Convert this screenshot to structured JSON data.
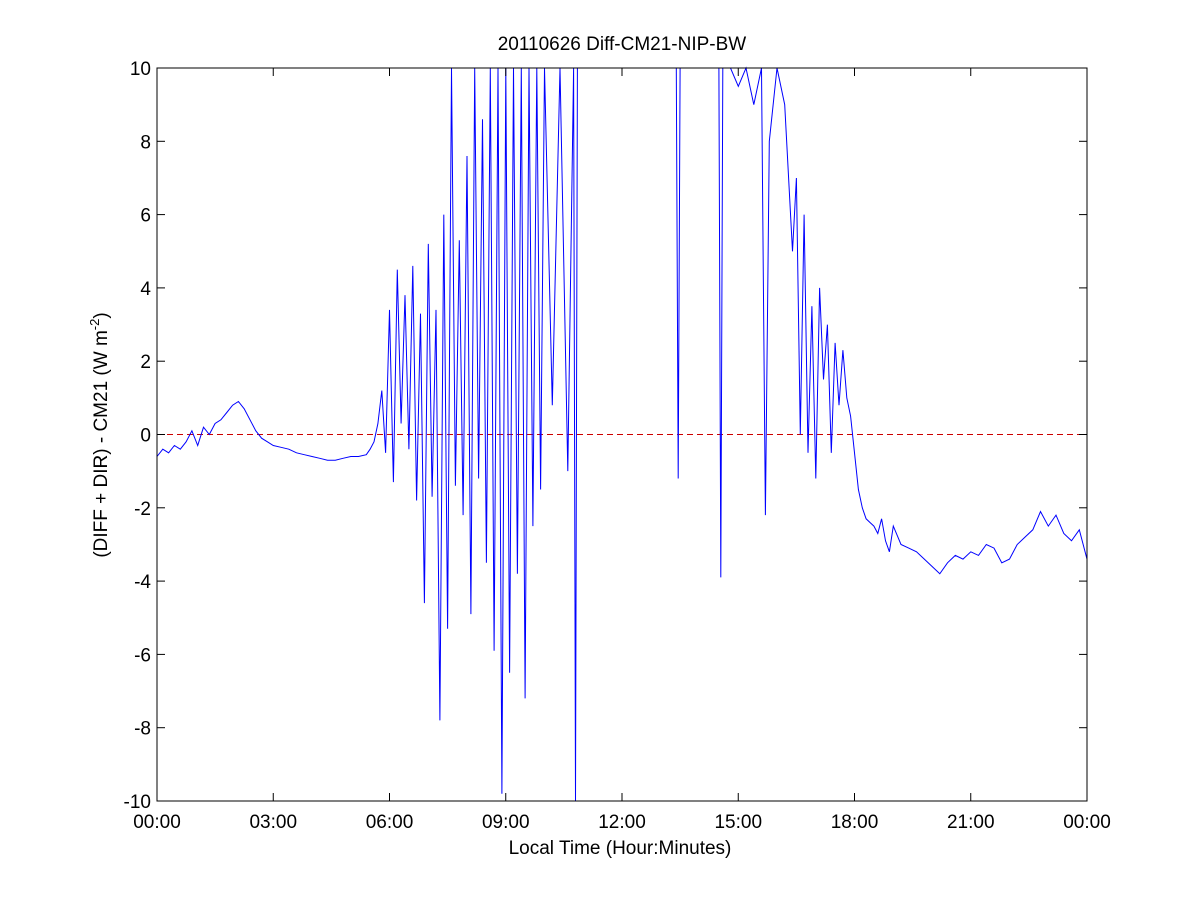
{
  "chart_data": {
    "type": "line",
    "title": "20110626 Diff-CM21-NIP-BW",
    "xlabel": "Local Time (Hour:Minutes)",
    "ylabel": "(DIFF + DIR) - CM21 (W m",
    "ylabel_superscript": "-2",
    "ylabel_suffix": ")",
    "x_unit": "hours",
    "xlim": [
      0,
      24
    ],
    "ylim": [
      -10,
      10
    ],
    "x_ticks": [
      0,
      3,
      6,
      9,
      12,
      15,
      18,
      21,
      24
    ],
    "x_tick_labels": [
      "00:00",
      "03:00",
      "06:00",
      "09:00",
      "12:00",
      "15:00",
      "18:00",
      "21:00",
      "00:00"
    ],
    "y_ticks": [
      -10,
      -8,
      -6,
      -4,
      -2,
      0,
      2,
      4,
      6,
      8,
      10
    ],
    "y_tick_labels": [
      "-10",
      "-8",
      "-6",
      "-4",
      "-2",
      "0",
      "2",
      "4",
      "6",
      "8",
      "10"
    ],
    "grid": false,
    "reference_line": {
      "y": 0,
      "color": "#cc0000",
      "style": "dashed"
    },
    "series": [
      {
        "color": "#0000ff",
        "x": [
          0,
          0.15,
          0.3,
          0.45,
          0.6,
          0.75,
          0.9,
          1.05,
          1.2,
          1.35,
          1.5,
          1.65,
          1.8,
          1.95,
          2.1,
          2.25,
          2.4,
          2.55,
          2.7,
          2.85,
          3.0,
          3.2,
          3.4,
          3.6,
          3.8,
          4.0,
          4.2,
          4.4,
          4.6,
          4.8,
          5.0,
          5.2,
          5.4,
          5.5,
          5.6,
          5.7,
          5.8,
          5.9,
          6.0,
          6.1,
          6.2,
          6.3,
          6.4,
          6.5,
          6.6,
          6.7,
          6.8,
          6.9,
          7.0,
          7.1,
          7.2,
          7.3,
          7.4,
          7.5,
          7.6,
          7.7,
          7.8,
          7.9,
          8.0,
          8.1,
          8.2,
          8.3,
          8.4,
          8.5,
          8.6,
          8.7,
          8.8,
          8.9,
          9.0,
          9.1,
          9.2,
          9.3,
          9.4,
          9.5,
          9.6,
          9.7,
          9.8,
          9.9,
          10.0,
          10.2,
          10.4,
          10.6,
          10.75,
          10.8,
          10.85,
          11.0,
          11.2,
          11.5,
          11.8,
          12.0,
          12.3,
          12.6,
          12.9,
          13.2,
          13.4,
          13.45,
          13.5,
          13.7,
          13.9,
          14.1,
          14.3,
          14.5,
          14.55,
          14.6,
          14.8,
          15.0,
          15.2,
          15.4,
          15.6,
          15.7,
          15.8,
          16.0,
          16.2,
          16.4,
          16.5,
          16.6,
          16.7,
          16.8,
          16.9,
          17.0,
          17.1,
          17.2,
          17.3,
          17.4,
          17.5,
          17.6,
          17.7,
          17.8,
          17.9,
          18.0,
          18.1,
          18.2,
          18.3,
          18.4,
          18.5,
          18.6,
          18.7,
          18.8,
          18.9,
          19.0,
          19.2,
          19.4,
          19.6,
          19.8,
          20.0,
          20.2,
          20.4,
          20.6,
          20.8,
          21.0,
          21.2,
          21.4,
          21.6,
          21.8,
          22.0,
          22.2,
          22.4,
          22.6,
          22.8,
          23.0,
          23.2,
          23.4,
          23.6,
          23.8,
          24.0
        ],
        "y": [
          -0.6,
          -0.4,
          -0.5,
          -0.3,
          -0.4,
          -0.2,
          0.1,
          -0.3,
          0.2,
          0.0,
          0.3,
          0.4,
          0.6,
          0.8,
          0.9,
          0.7,
          0.4,
          0.1,
          -0.1,
          -0.2,
          -0.3,
          -0.35,
          -0.4,
          -0.5,
          -0.55,
          -0.6,
          -0.65,
          -0.7,
          -0.7,
          -0.65,
          -0.6,
          -0.6,
          -0.55,
          -0.4,
          -0.2,
          0.3,
          1.2,
          -0.5,
          3.4,
          -1.3,
          4.5,
          0.3,
          3.8,
          -0.4,
          4.6,
          -1.8,
          3.3,
          -4.6,
          5.2,
          -1.7,
          3.4,
          -7.8,
          6.0,
          -5.3,
          10.0,
          -1.4,
          5.3,
          -2.2,
          7.6,
          -4.9,
          10.0,
          -1.2,
          8.6,
          -3.5,
          10.0,
          -5.9,
          10.0,
          -9.8,
          10.0,
          -6.5,
          10.0,
          -3.8,
          10.0,
          -7.2,
          10.0,
          -2.5,
          10.0,
          -1.5,
          10.0,
          0.8,
          10.0,
          -1.0,
          10.0,
          -10.0,
          10.0,
          10.0,
          10.0,
          10.0,
          10.0,
          10.0,
          10.0,
          10.0,
          10.0,
          10.0,
          10.0,
          -1.2,
          10.0,
          10.0,
          10.0,
          10.0,
          10.0,
          10.0,
          -3.9,
          10.0,
          10.0,
          9.5,
          10.0,
          9.0,
          10.0,
          -2.2,
          8.0,
          10.0,
          9.0,
          5.0,
          7.0,
          0.0,
          6.0,
          -0.5,
          3.5,
          -1.2,
          4.0,
          1.5,
          3.0,
          -0.5,
          2.5,
          0.8,
          2.3,
          1.0,
          0.5,
          -0.5,
          -1.5,
          -2.0,
          -2.3,
          -2.4,
          -2.5,
          -2.7,
          -2.3,
          -2.9,
          -3.2,
          -2.5,
          -3.0,
          -3.1,
          -3.2,
          -3.4,
          -3.6,
          -3.8,
          -3.5,
          -3.3,
          -3.4,
          -3.2,
          -3.3,
          -3.0,
          -3.1,
          -3.5,
          -3.4,
          -3.0,
          -2.8,
          -2.6,
          -2.1,
          -2.5,
          -2.2,
          -2.7,
          -2.9,
          -2.6,
          -3.4
        ]
      }
    ]
  }
}
